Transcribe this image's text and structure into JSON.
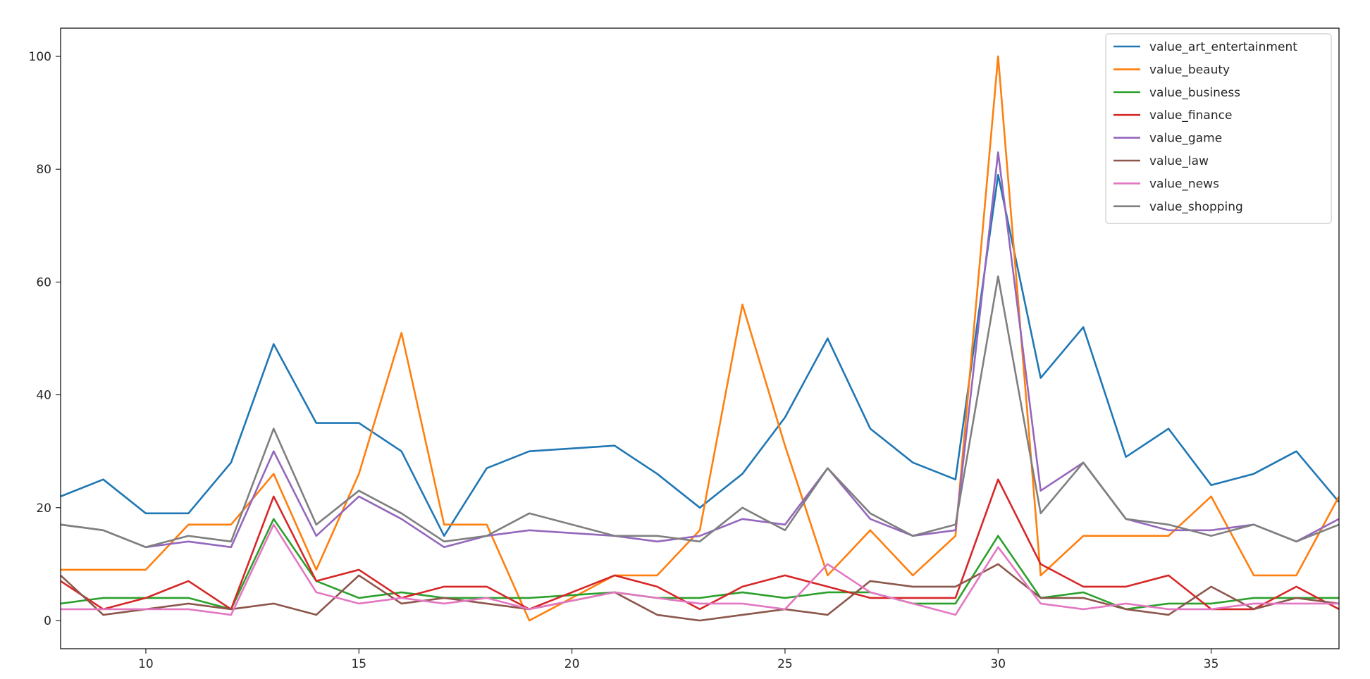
{
  "chart_data": {
    "type": "line",
    "title": "",
    "xlabel": "",
    "ylabel": "",
    "xlim": [
      8,
      38
    ],
    "ylim": [
      -5,
      105
    ],
    "grid": false,
    "legend_position": "top-right",
    "x_ticks": [
      10,
      15,
      20,
      25,
      30,
      35
    ],
    "y_ticks": [
      0,
      20,
      40,
      60,
      80,
      100
    ],
    "x": [
      8,
      9,
      10,
      11,
      12,
      13,
      14,
      15,
      16,
      17,
      18,
      19,
      20,
      21,
      22,
      23,
      24,
      25,
      26,
      27,
      28,
      29,
      30,
      31,
      32,
      33,
      34,
      35,
      36,
      37,
      38
    ],
    "series": [
      {
        "name": "value_art_entertainment",
        "color": "#1f77b4",
        "values": [
          22,
          25,
          19,
          19,
          28,
          49,
          35,
          35,
          30,
          15,
          27,
          30,
          30.5,
          31,
          26,
          20,
          26,
          36,
          50,
          34,
          28,
          25,
          79,
          43,
          52,
          29,
          34,
          24,
          26,
          30,
          21
        ]
      },
      {
        "name": "value_beauty",
        "color": "#ff7f0e",
        "values": [
          9,
          9,
          9,
          17,
          17,
          26,
          9,
          26,
          51,
          17,
          17,
          0,
          4,
          8,
          8,
          16,
          56,
          31,
          8,
          16,
          8,
          15,
          100,
          8,
          15,
          15,
          15,
          22,
          8,
          8,
          22
        ]
      },
      {
        "name": "value_business",
        "color": "#2ca02c",
        "values": [
          3,
          4,
          4,
          4,
          2,
          18,
          7,
          4,
          5,
          4,
          4,
          4,
          4.5,
          5,
          4,
          4,
          5,
          4,
          5,
          5,
          3,
          3,
          15,
          4,
          5,
          2,
          3,
          3,
          4,
          4,
          4
        ]
      },
      {
        "name": "value_finance",
        "color": "#d62728",
        "values": [
          7,
          2,
          4,
          7,
          2,
          22,
          7,
          9,
          4,
          6,
          6,
          2,
          5,
          8,
          6,
          2,
          6,
          8,
          6,
          4,
          4,
          4,
          25,
          10,
          6,
          6,
          8,
          2,
          2,
          6,
          2
        ]
      },
      {
        "name": "value_game",
        "color": "#9467bd",
        "values": [
          17,
          16,
          13,
          14,
          13,
          30,
          15,
          22,
          18,
          13,
          15,
          16,
          15.5,
          15,
          14,
          15,
          18,
          17,
          27,
          18,
          15,
          16,
          83,
          23,
          28,
          18,
          16,
          16,
          17,
          14,
          18
        ]
      },
      {
        "name": "value_law",
        "color": "#8c564b",
        "values": [
          8,
          1,
          2,
          3,
          2,
          3,
          1,
          8,
          3,
          4,
          3,
          2,
          3.5,
          5,
          1,
          0,
          1,
          2,
          1,
          7,
          6,
          6,
          10,
          4,
          4,
          2,
          1,
          6,
          2,
          4,
          3
        ]
      },
      {
        "name": "value_news",
        "color": "#e377c2",
        "values": [
          2,
          2,
          2,
          2,
          1,
          17,
          5,
          3,
          4,
          3,
          4,
          2,
          3.5,
          5,
          4,
          3,
          3,
          2,
          10,
          5,
          3,
          1,
          13,
          3,
          2,
          3,
          2,
          2,
          3,
          3,
          3
        ]
      },
      {
        "name": "value_shopping",
        "color": "#7f7f7f",
        "values": [
          17,
          16,
          13,
          15,
          14,
          34,
          17,
          23,
          19,
          14,
          15,
          19,
          17,
          15,
          15,
          14,
          20,
          16,
          27,
          19,
          15,
          17,
          61,
          19,
          28,
          18,
          17,
          15,
          17,
          14,
          17
        ]
      }
    ]
  }
}
